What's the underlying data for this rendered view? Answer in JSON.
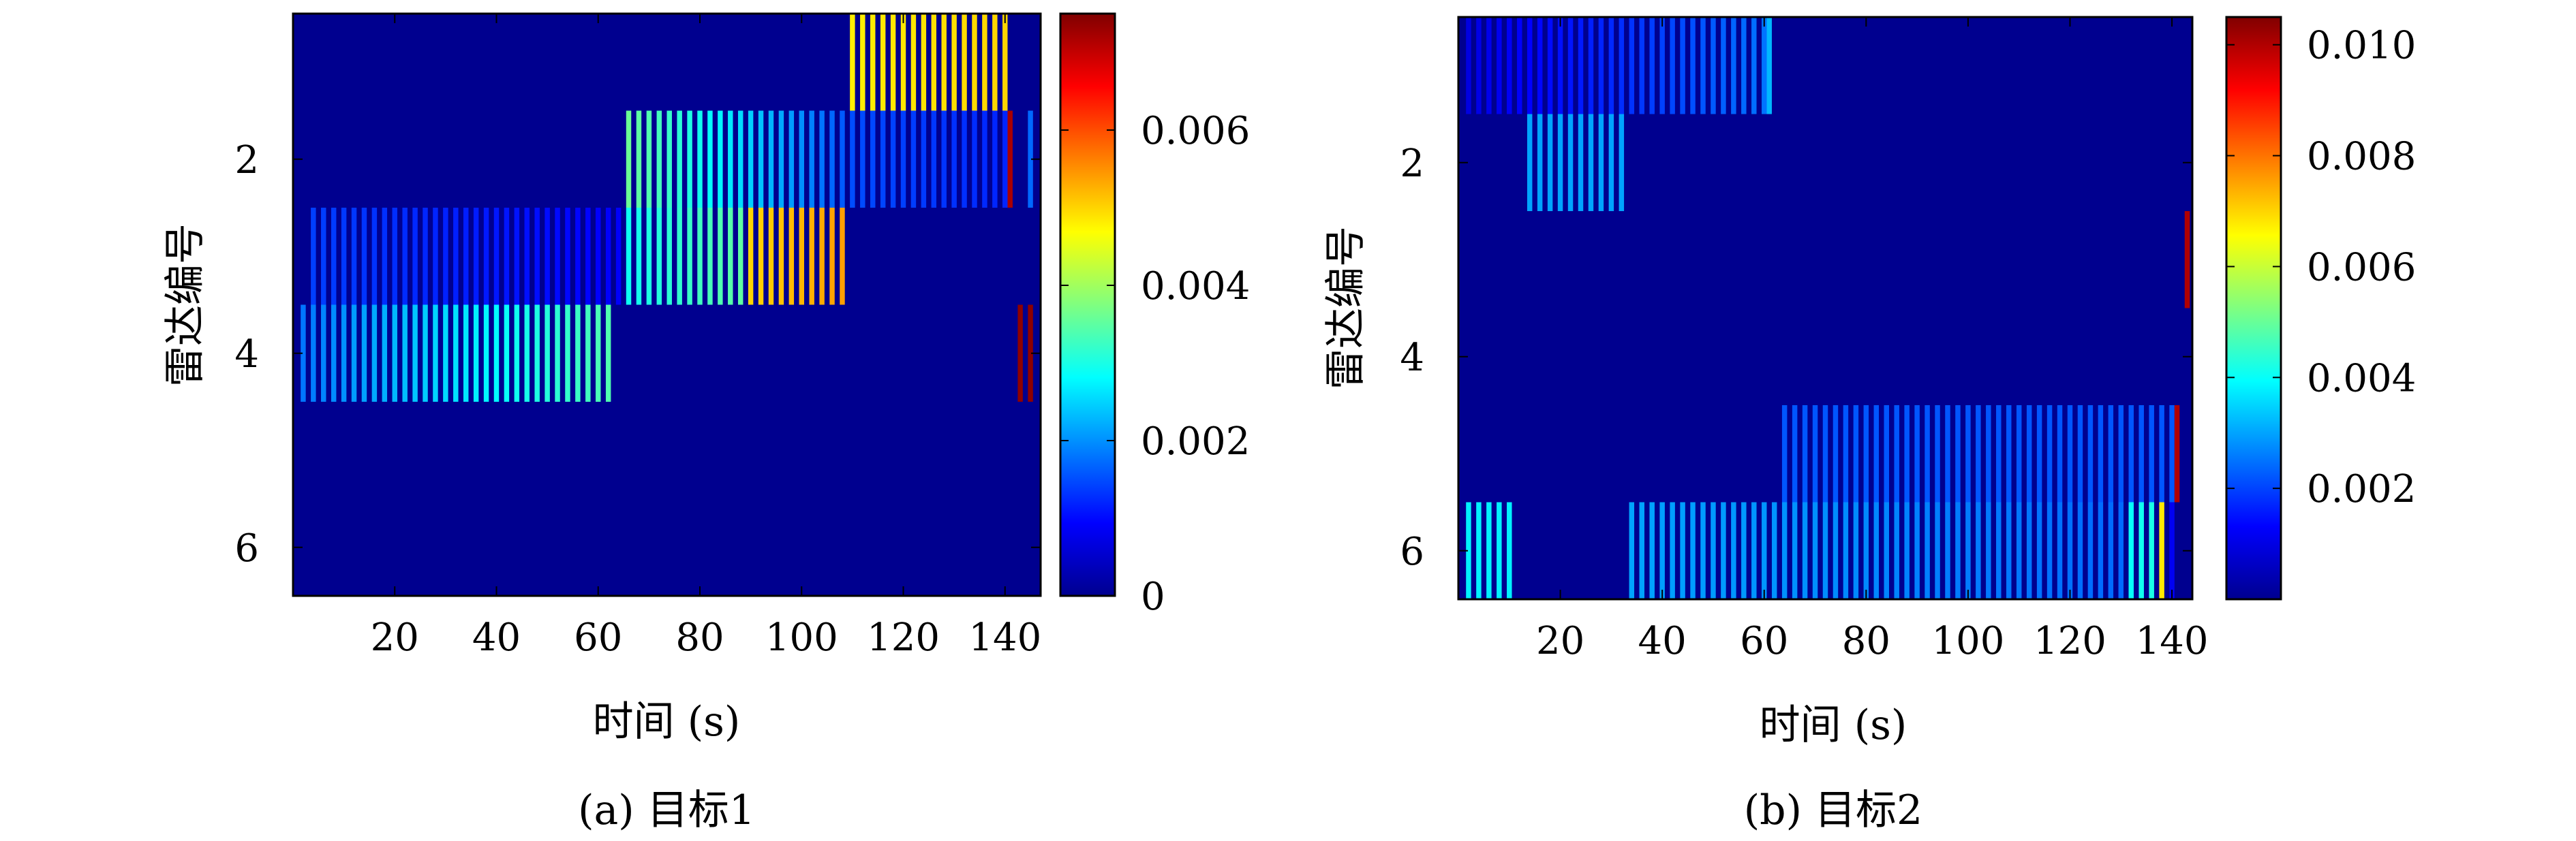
{
  "colors": {
    "background_cell": "#00008f",
    "frame": "#000000",
    "colormap": "jet"
  },
  "chart_data": [
    {
      "type": "heatmap",
      "caption": "(a) 目标1",
      "xlabel": "时间 (s)",
      "ylabel": "雷达编号",
      "x_ticks": [
        20,
        40,
        60,
        80,
        100,
        120,
        140
      ],
      "y_ticks": [
        2,
        4,
        6
      ],
      "xlim": [
        0,
        147
      ],
      "rows": [
        1,
        2,
        3,
        4,
        5,
        6
      ],
      "row_order": "1 at top",
      "stripe_width": 1,
      "stripe_step": 2,
      "colorbar": {
        "min": 0,
        "max": 0.0075,
        "ticks": [
          0,
          0.002,
          0.004,
          0.006
        ],
        "tick_labels": [
          "0",
          "0.002",
          "0.004",
          "0.006"
        ]
      },
      "default_value": 0.0002,
      "segments": [
        {
          "row": 1,
          "from": 110,
          "to": 140,
          "start_value": 0.0048,
          "end_value": 0.005
        },
        {
          "row": 2,
          "from": 66,
          "to": 108,
          "start_value": 0.0036,
          "end_value": 0.0016
        },
        {
          "row": 2,
          "from": 110,
          "to": 140,
          "start_value": 0.0015,
          "end_value": 0.0012
        },
        {
          "row": 2,
          "from": 141,
          "to": 141,
          "start_value": 0.0072,
          "end_value": 0.0072
        },
        {
          "row": 2,
          "from": 145,
          "to": 145,
          "start_value": 0.0017,
          "end_value": 0.0017
        },
        {
          "row": 3,
          "from": 4,
          "to": 64,
          "start_value": 0.0014,
          "end_value": 0.0009
        },
        {
          "row": 3,
          "from": 66,
          "to": 88,
          "start_value": 0.0029,
          "end_value": 0.0035
        },
        {
          "row": 3,
          "from": 90,
          "to": 108,
          "start_value": 0.005,
          "end_value": 0.0054
        },
        {
          "row": 4,
          "from": 2,
          "to": 62,
          "start_value": 0.0018,
          "end_value": 0.0034
        },
        {
          "row": 4,
          "from": 143,
          "to": 145,
          "start_value": 0.0074,
          "end_value": 0.0074
        }
      ]
    },
    {
      "type": "heatmap",
      "caption": "(b) 目标2",
      "xlabel": "时间 (s)",
      "ylabel": "雷达编号",
      "x_ticks": [
        20,
        40,
        60,
        80,
        100,
        120,
        140
      ],
      "y_ticks": [
        2,
        4,
        6
      ],
      "xlim": [
        0,
        144
      ],
      "rows": [
        1,
        2,
        3,
        4,
        5,
        6
      ],
      "row_order": "1 at top",
      "stripe_width": 1,
      "stripe_step": 2,
      "colorbar": {
        "min": 0,
        "max": 0.0105,
        "ticks": [
          0.002,
          0.004,
          0.006,
          0.008,
          0.01
        ],
        "tick_labels": [
          "0.002",
          "0.004",
          "0.006",
          "0.008",
          "0.010"
        ]
      },
      "default_value": 0.0003,
      "segments": [
        {
          "row": 1,
          "from": 2,
          "to": 60,
          "start_value": 0.001,
          "end_value": 0.0025
        },
        {
          "row": 1,
          "from": 61,
          "to": 61,
          "start_value": 0.0032,
          "end_value": 0.0032
        },
        {
          "row": 2,
          "from": 14,
          "to": 32,
          "start_value": 0.003,
          "end_value": 0.003
        },
        {
          "row": 3,
          "from": 143,
          "to": 143,
          "start_value": 0.01,
          "end_value": 0.01
        },
        {
          "row": 5,
          "from": 64,
          "to": 140,
          "start_value": 0.0022,
          "end_value": 0.0022
        },
        {
          "row": 5,
          "from": 141,
          "to": 141,
          "start_value": 0.01,
          "end_value": 0.01
        },
        {
          "row": 6,
          "from": 2,
          "to": 10,
          "start_value": 0.0038,
          "end_value": 0.0038
        },
        {
          "row": 6,
          "from": 34,
          "to": 130,
          "start_value": 0.003,
          "end_value": 0.0024
        },
        {
          "row": 6,
          "from": 132,
          "to": 136,
          "start_value": 0.004,
          "end_value": 0.0042
        },
        {
          "row": 6,
          "from": 138,
          "to": 138,
          "start_value": 0.0068,
          "end_value": 0.0068
        },
        {
          "row": 6,
          "from": 140,
          "to": 140,
          "start_value": 0.0012,
          "end_value": 0.0012
        }
      ]
    }
  ]
}
